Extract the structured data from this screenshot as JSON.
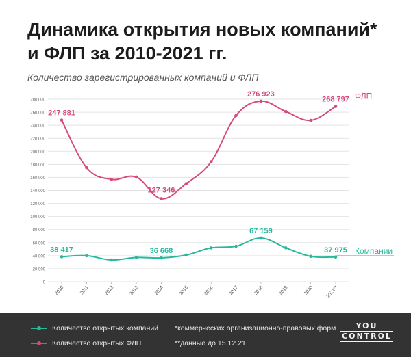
{
  "title_line1": "Динамика открытия новых компаний*",
  "title_line2": "и ФЛП за 2010-2021 гг.",
  "subtitle": "Количество зарегистрированных компаний и ФЛП",
  "colors": {
    "flp": "#d6497f",
    "companies": "#27b99c",
    "grid": "#e3e3e3",
    "footer_bg": "#333333"
  },
  "chart_data": {
    "type": "line",
    "title": "Динамика открытия новых компаний* и ФЛП за 2010-2021 гг.",
    "ylabel": "Количество зарегистрированных компаний и ФЛП",
    "ylim": [
      0,
      280000
    ],
    "y_ticks": [
      "0",
      "20 000",
      "40 000",
      "60 000",
      "80 000",
      "100 000",
      "120 000",
      "140 000",
      "160 000",
      "180 000",
      "200 000",
      "220 000",
      "240 000",
      "260 000",
      "280 000"
    ],
    "categories": [
      "2010",
      "2011",
      "2012",
      "2013",
      "2014",
      "2015",
      "2016",
      "2017",
      "2018",
      "2019",
      "2020",
      "2021**"
    ],
    "grid": true,
    "series": [
      {
        "name": "ФЛП",
        "color": "#d6497f",
        "values": [
          247881,
          175000,
          157000,
          160500,
          127346,
          150500,
          184000,
          255000,
          276923,
          261000,
          247500,
          268797
        ],
        "labels": {
          "0": "247 881",
          "4": "127 346",
          "8": "276 923",
          "11": "268 797"
        }
      },
      {
        "name": "Компании",
        "color": "#27b99c",
        "values": [
          38417,
          40000,
          33500,
          37300,
          36668,
          41000,
          52000,
          54500,
          67159,
          52000,
          39000,
          37975
        ],
        "labels": {
          "0": "38 417",
          "4": "36 668",
          "8": "67 159",
          "11": "37 975"
        }
      }
    ]
  },
  "legend": {
    "companies": "Количество открытых компаний",
    "flp": "Количество открытых ФЛП"
  },
  "notes": {
    "note1": "*коммерческих организационно-правовых форм",
    "note2": "**данные до 15.12.21"
  },
  "logo": {
    "top": "YOU",
    "bottom": "CONTROL"
  }
}
